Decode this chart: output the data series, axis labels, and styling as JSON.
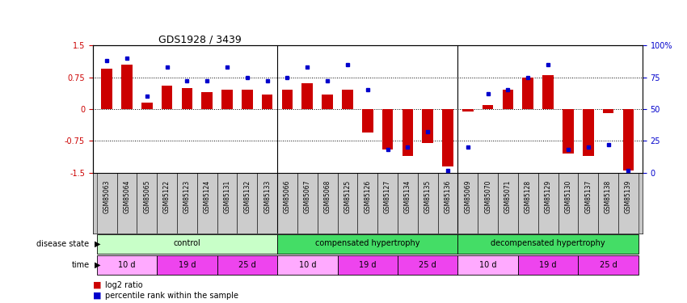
{
  "title": "GDS1928 / 3439",
  "samples": [
    "GSM85063",
    "GSM85064",
    "GSM85065",
    "GSM85122",
    "GSM85123",
    "GSM85124",
    "GSM85131",
    "GSM85132",
    "GSM85133",
    "GSM85066",
    "GSM85067",
    "GSM85068",
    "GSM85125",
    "GSM85126",
    "GSM85127",
    "GSM85134",
    "GSM85135",
    "GSM85136",
    "GSM85069",
    "GSM85070",
    "GSM85071",
    "GSM85128",
    "GSM85129",
    "GSM85130",
    "GSM85137",
    "GSM85138",
    "GSM85139"
  ],
  "log2_ratio": [
    0.95,
    1.05,
    0.15,
    0.55,
    0.5,
    0.4,
    0.45,
    0.45,
    0.35,
    0.45,
    0.6,
    0.35,
    0.45,
    -0.55,
    -0.95,
    -1.1,
    -0.8,
    -1.35,
    -0.05,
    0.1,
    0.45,
    0.75,
    0.8,
    -1.05,
    -1.1,
    -0.1,
    -1.45
  ],
  "percentile_rank": [
    88,
    90,
    60,
    83,
    72,
    72,
    83,
    75,
    72,
    75,
    83,
    72,
    85,
    65,
    18,
    20,
    32,
    2,
    20,
    62,
    65,
    75,
    85,
    18,
    20,
    22,
    2
  ],
  "disease_state_groups": [
    {
      "label": "control",
      "start": 0,
      "end": 8,
      "color": "#C8FFC8"
    },
    {
      "label": "compensated hypertrophy",
      "start": 9,
      "end": 17,
      "color": "#44DD66"
    },
    {
      "label": "decompensated hypertrophy",
      "start": 18,
      "end": 26,
      "color": "#44DD66"
    }
  ],
  "time_groups": [
    {
      "label": "10 d",
      "start": 0,
      "end": 2,
      "color": "#FFAAFF"
    },
    {
      "label": "19 d",
      "start": 3,
      "end": 5,
      "color": "#EE44EE"
    },
    {
      "label": "25 d",
      "start": 6,
      "end": 8,
      "color": "#EE44EE"
    },
    {
      "label": "10 d",
      "start": 9,
      "end": 11,
      "color": "#FFAAFF"
    },
    {
      "label": "19 d",
      "start": 12,
      "end": 14,
      "color": "#EE44EE"
    },
    {
      "label": "25 d",
      "start": 15,
      "end": 17,
      "color": "#EE44EE"
    },
    {
      "label": "10 d",
      "start": 18,
      "end": 20,
      "color": "#FFAAFF"
    },
    {
      "label": "19 d",
      "start": 21,
      "end": 23,
      "color": "#EE44EE"
    },
    {
      "label": "25 d",
      "start": 24,
      "end": 26,
      "color": "#EE44EE"
    }
  ],
  "bar_color": "#CC0000",
  "dot_color": "#0000CC",
  "ylim": [
    -1.5,
    1.5
  ],
  "y2lim": [
    0,
    100
  ],
  "yticks": [
    -1.5,
    -0.75,
    0,
    0.75,
    1.5
  ],
  "y2ticks": [
    0,
    25,
    50,
    75,
    100
  ],
  "hlines": [
    -0.75,
    0,
    0.75
  ],
  "group_seps": [
    8.5,
    17.5
  ],
  "xtick_bg": "#DDDDDD",
  "title_fontsize": 9
}
